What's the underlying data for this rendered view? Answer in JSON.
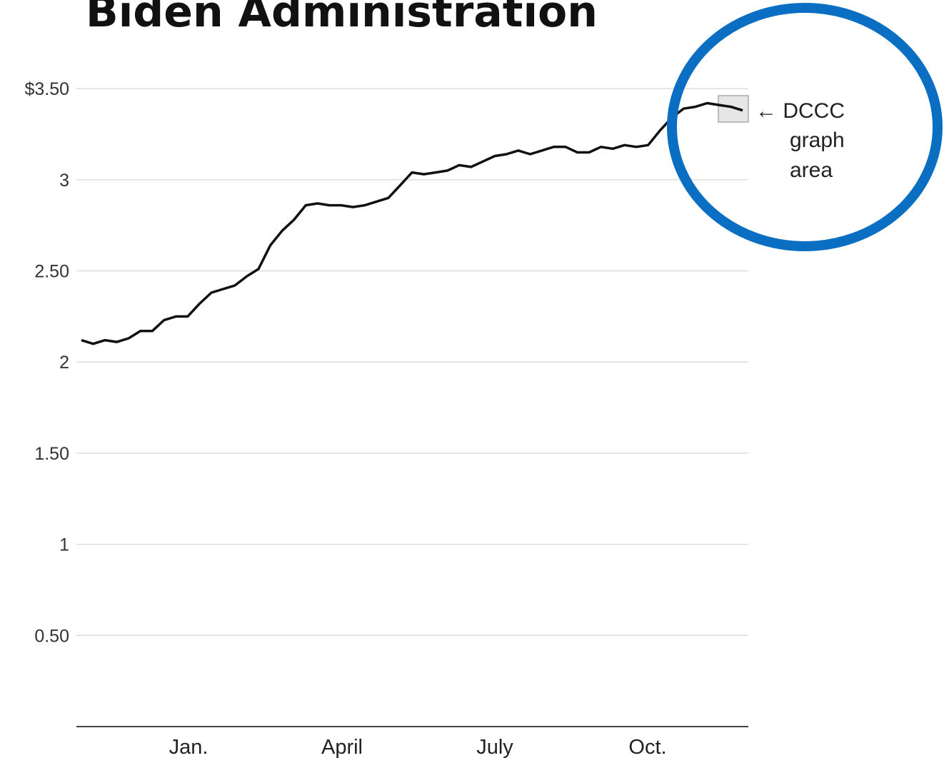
{
  "title": "Biden Administration",
  "chart_data": {
    "type": "line",
    "ylim": [
      0,
      3.5
    ],
    "y_ticks": [
      {
        "value": 3.5,
        "label": "$3.50"
      },
      {
        "value": 3.0,
        "label": "3"
      },
      {
        "value": 2.5,
        "label": "2.50"
      },
      {
        "value": 2.0,
        "label": "2"
      },
      {
        "value": 1.5,
        "label": "1.50"
      },
      {
        "value": 1.0,
        "label": "1"
      },
      {
        "value": 0.5,
        "label": "0.50"
      }
    ],
    "x_ticks": [
      "Jan.",
      "April",
      "July",
      "Oct."
    ],
    "grid": true,
    "series": [
      {
        "values": [
          2.12,
          2.1,
          2.12,
          2.11,
          2.13,
          2.17,
          2.17,
          2.23,
          2.25,
          2.25,
          2.32,
          2.38,
          2.4,
          2.42,
          2.47,
          2.51,
          2.64,
          2.72,
          2.78,
          2.86,
          2.87,
          2.86,
          2.86,
          2.85,
          2.86,
          2.88,
          2.9,
          2.97,
          3.04,
          3.03,
          3.04,
          3.05,
          3.08,
          3.07,
          3.1,
          3.13,
          3.14,
          3.16,
          3.14,
          3.16,
          3.18,
          3.18,
          3.15,
          3.15,
          3.18,
          3.17,
          3.19,
          3.18,
          3.19,
          3.27,
          3.34,
          3.39,
          3.4,
          3.42,
          3.41,
          3.4,
          3.38
        ]
      }
    ],
    "annotation": {
      "lines": [
        "← DCCC",
        "graph",
        "area"
      ],
      "circle_color": "#0a6fc2"
    }
  }
}
